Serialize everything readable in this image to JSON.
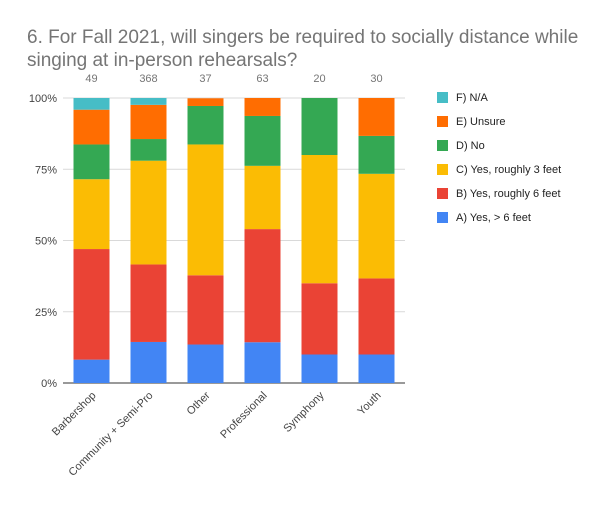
{
  "chart_data": {
    "type": "bar",
    "stacked": true,
    "normalized": true,
    "title": "6. For Fall 2021, will singers be required to socially distance while singing at in-person rehearsals?",
    "categories": [
      "Barbershop",
      "Community + Semi-Pro",
      "Other",
      "Professional",
      "Symphony",
      "Youth"
    ],
    "totals": [
      "49",
      "368",
      "37",
      "63",
      "20",
      "30"
    ],
    "y_ticks": [
      "0%",
      "25%",
      "50%",
      "75%",
      "100%"
    ],
    "ylim": [
      0,
      100
    ],
    "grid": true,
    "legend_position": "right",
    "series": [
      {
        "name": "A) Yes, > 6 feet",
        "color": "#4285f4",
        "values": [
          8.2,
          14.4,
          13.5,
          14.3,
          10.0,
          10.0
        ]
      },
      {
        "name": "B) Yes, roughly 6 feet",
        "color": "#ea4335",
        "values": [
          38.8,
          27.2,
          24.3,
          39.7,
          25.0,
          26.7
        ]
      },
      {
        "name": "C) Yes, roughly 3 feet",
        "color": "#fbbc04",
        "values": [
          24.5,
          36.4,
          45.9,
          22.2,
          45.0,
          36.7
        ]
      },
      {
        "name": "D) No",
        "color": "#34a853",
        "values": [
          12.2,
          7.6,
          13.5,
          17.5,
          20.0,
          13.3
        ]
      },
      {
        "name": "E) Unsure",
        "color": "#ff6d01",
        "values": [
          12.2,
          12.0,
          2.7,
          6.3,
          0.0,
          13.3
        ]
      },
      {
        "name": "F) N/A",
        "color": "#46bdc6",
        "values": [
          4.1,
          2.4,
          0.0,
          0.0,
          0.0,
          0.0
        ]
      }
    ]
  }
}
